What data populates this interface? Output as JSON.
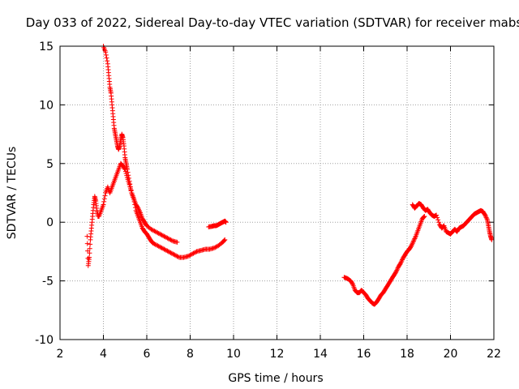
{
  "chart_data": {
    "type": "scatter",
    "title": "Day 033 of 2022, Sidereal Day-to-day VTEC variation (SDTVAR) for receiver mabs",
    "xlabel": "GPS time / hours",
    "ylabel": "SDTVAR / TECUs",
    "xlim": [
      2,
      22
    ],
    "ylim": [
      -10,
      15
    ],
    "x_ticks": [
      2,
      4,
      6,
      8,
      10,
      12,
      14,
      16,
      18,
      20,
      22
    ],
    "y_ticks": [
      -10,
      -5,
      0,
      5,
      10,
      15
    ],
    "grid": true,
    "marker": "+",
    "color": "#ff0000",
    "series": [
      {
        "name": "upper branch early",
        "points": [
          [
            4.0,
            15.0
          ],
          [
            4.1,
            14.5
          ],
          [
            4.2,
            13.5
          ],
          [
            4.25,
            12.5
          ],
          [
            4.3,
            11.5
          ],
          [
            4.35,
            11.0
          ],
          [
            4.4,
            10.0
          ],
          [
            4.45,
            9.0
          ],
          [
            4.5,
            8.0
          ],
          [
            4.55,
            7.5
          ],
          [
            4.6,
            7.0
          ],
          [
            4.65,
            6.5
          ],
          [
            4.7,
            6.2
          ],
          [
            4.75,
            6.5
          ],
          [
            4.8,
            7.0
          ],
          [
            4.85,
            7.5
          ],
          [
            4.9,
            7.2
          ],
          [
            4.95,
            6.5
          ],
          [
            5.0,
            5.5
          ],
          [
            5.05,
            5.0
          ],
          [
            5.1,
            4.5
          ],
          [
            5.2,
            3.5
          ],
          [
            5.3,
            2.5
          ],
          [
            5.4,
            2.0
          ],
          [
            5.5,
            1.5
          ],
          [
            5.6,
            1.2
          ],
          [
            5.7,
            0.8
          ],
          [
            5.8,
            0.3
          ],
          [
            5.9,
            0.0
          ],
          [
            6.0,
            -0.3
          ],
          [
            6.2,
            -0.6
          ],
          [
            6.4,
            -0.8
          ],
          [
            6.6,
            -1.0
          ],
          [
            6.8,
            -1.2
          ],
          [
            7.0,
            -1.4
          ],
          [
            7.2,
            -1.6
          ],
          [
            7.4,
            -1.7
          ]
        ]
      },
      {
        "name": "lower branch early",
        "points": [
          [
            3.25,
            -1.2
          ],
          [
            3.3,
            -3.7
          ],
          [
            3.35,
            -3.0
          ],
          [
            3.4,
            -1.5
          ],
          [
            3.45,
            -0.5
          ],
          [
            3.5,
            0.5
          ],
          [
            3.55,
            1.5
          ],
          [
            3.6,
            2.2
          ],
          [
            3.65,
            1.8
          ],
          [
            3.7,
            1.0
          ],
          [
            3.75,
            0.5
          ],
          [
            3.8,
            0.5
          ],
          [
            3.9,
            1.0
          ],
          [
            4.0,
            1.5
          ],
          [
            4.1,
            2.5
          ],
          [
            4.2,
            3.0
          ],
          [
            4.3,
            2.5
          ],
          [
            4.4,
            3.0
          ],
          [
            4.5,
            3.5
          ],
          [
            4.6,
            4.0
          ],
          [
            4.7,
            4.5
          ],
          [
            4.8,
            5.0
          ],
          [
            4.9,
            4.8
          ],
          [
            5.0,
            4.5
          ],
          [
            5.1,
            3.8
          ],
          [
            5.2,
            3.2
          ],
          [
            5.3,
            2.5
          ],
          [
            5.4,
            2.0
          ],
          [
            5.5,
            1.0
          ],
          [
            5.6,
            0.5
          ],
          [
            5.7,
            0.0
          ],
          [
            5.8,
            -0.5
          ],
          [
            5.9,
            -0.8
          ],
          [
            6.0,
            -1.0
          ],
          [
            6.1,
            -1.3
          ],
          [
            6.2,
            -1.6
          ],
          [
            6.3,
            -1.8
          ],
          [
            6.5,
            -2.0
          ],
          [
            6.7,
            -2.2
          ],
          [
            6.9,
            -2.4
          ],
          [
            7.1,
            -2.6
          ],
          [
            7.3,
            -2.8
          ],
          [
            7.5,
            -3.0
          ],
          [
            7.7,
            -3.0
          ],
          [
            7.9,
            -2.9
          ],
          [
            8.1,
            -2.7
          ],
          [
            8.3,
            -2.5
          ],
          [
            8.5,
            -2.4
          ],
          [
            8.7,
            -2.3
          ],
          [
            8.9,
            -2.3
          ],
          [
            9.1,
            -2.2
          ],
          [
            9.3,
            -2.0
          ],
          [
            9.5,
            -1.7
          ],
          [
            9.6,
            -1.5
          ]
        ]
      },
      {
        "name": "short segment",
        "points": [
          [
            8.85,
            -0.4
          ],
          [
            9.0,
            -0.35
          ],
          [
            9.1,
            -0.3
          ],
          [
            9.2,
            -0.3
          ],
          [
            9.3,
            -0.2
          ],
          [
            9.4,
            -0.1
          ],
          [
            9.5,
            0.0
          ],
          [
            9.6,
            0.1
          ],
          [
            9.65,
            0.0
          ]
        ]
      },
      {
        "name": "afternoon segment",
        "points": [
          [
            15.1,
            -4.7
          ],
          [
            15.25,
            -4.8
          ],
          [
            15.4,
            -5.0
          ],
          [
            15.5,
            -5.3
          ],
          [
            15.6,
            -5.8
          ],
          [
            15.7,
            -6.0
          ],
          [
            15.8,
            -6.0
          ],
          [
            15.9,
            -5.8
          ],
          [
            16.0,
            -6.0
          ],
          [
            16.1,
            -6.2
          ],
          [
            16.2,
            -6.5
          ],
          [
            16.3,
            -6.7
          ],
          [
            16.4,
            -6.9
          ],
          [
            16.5,
            -7.0
          ],
          [
            16.6,
            -6.8
          ],
          [
            16.7,
            -6.5
          ],
          [
            16.8,
            -6.2
          ],
          [
            16.9,
            -6.0
          ],
          [
            17.0,
            -5.7
          ],
          [
            17.1,
            -5.4
          ],
          [
            17.2,
            -5.1
          ],
          [
            17.3,
            -4.8
          ],
          [
            17.4,
            -4.5
          ],
          [
            17.5,
            -4.2
          ],
          [
            17.6,
            -3.8
          ],
          [
            17.7,
            -3.5
          ],
          [
            17.8,
            -3.1
          ],
          [
            17.9,
            -2.8
          ],
          [
            18.0,
            -2.5
          ],
          [
            18.1,
            -2.3
          ],
          [
            18.2,
            -2.0
          ],
          [
            18.3,
            -1.6
          ],
          [
            18.4,
            -1.2
          ],
          [
            18.5,
            -0.7
          ],
          [
            18.6,
            -0.2
          ],
          [
            18.7,
            0.3
          ],
          [
            18.8,
            0.5
          ]
        ]
      },
      {
        "name": "evening segment",
        "points": [
          [
            18.25,
            1.5
          ],
          [
            18.35,
            1.2
          ],
          [
            18.45,
            1.4
          ],
          [
            18.55,
            1.6
          ],
          [
            18.65,
            1.5
          ],
          [
            18.75,
            1.2
          ],
          [
            18.85,
            1.0
          ],
          [
            18.95,
            1.1
          ],
          [
            19.05,
            0.8
          ],
          [
            19.15,
            0.6
          ],
          [
            19.25,
            0.5
          ],
          [
            19.35,
            0.6
          ],
          [
            19.5,
            -0.2
          ],
          [
            19.6,
            -0.5
          ],
          [
            19.7,
            -0.3
          ],
          [
            19.8,
            -0.8
          ],
          [
            19.9,
            -0.9
          ],
          [
            20.0,
            -1.0
          ],
          [
            20.1,
            -0.8
          ],
          [
            20.2,
            -0.6
          ],
          [
            20.3,
            -0.8
          ],
          [
            20.4,
            -0.5
          ],
          [
            20.5,
            -0.4
          ],
          [
            20.6,
            -0.3
          ],
          [
            20.7,
            -0.1
          ],
          [
            20.8,
            0.1
          ],
          [
            20.9,
            0.3
          ],
          [
            21.0,
            0.5
          ],
          [
            21.1,
            0.7
          ],
          [
            21.2,
            0.8
          ],
          [
            21.3,
            0.9
          ],
          [
            21.4,
            1.0
          ],
          [
            21.5,
            0.9
          ],
          [
            21.6,
            0.6
          ],
          [
            21.7,
            0.2
          ],
          [
            21.75,
            -0.3
          ],
          [
            21.8,
            -0.8
          ],
          [
            21.85,
            -1.2
          ],
          [
            21.9,
            -1.5
          ]
        ]
      }
    ]
  }
}
